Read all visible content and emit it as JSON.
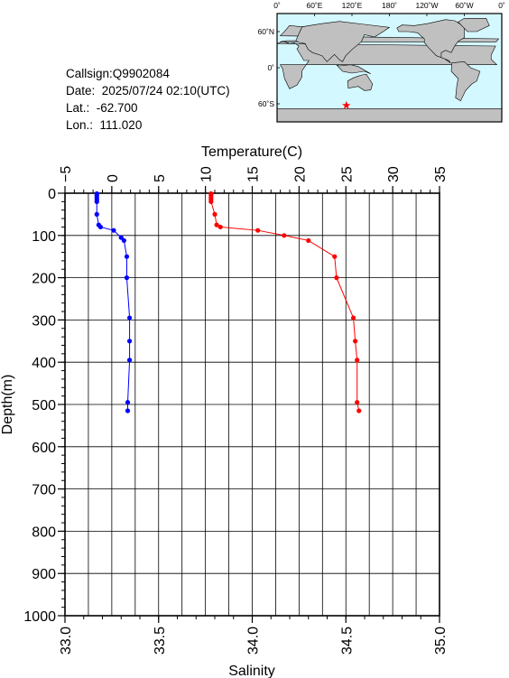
{
  "info": {
    "callsign": "Callsign:Q9902084",
    "date": "Date:  2025/07/24 02:10(UTC)",
    "lat": "Lat.:  -62.700",
    "lon": "Lon.:  111.020"
  },
  "map": {
    "top_labels": [
      "0˚",
      "60˚E",
      "120˚E",
      "180˚",
      "120˚W",
      "60˚W",
      "0˚"
    ],
    "side_labels": [
      "60˚N",
      "0˚",
      "60˚S"
    ],
    "ocean_color": "#d4f8ff",
    "land_color": "#c0c0c0",
    "marker_color": "#ff0000",
    "marker_lon": 111.02,
    "marker_lat": -62.7
  },
  "chart_data": {
    "type": "line",
    "xlabel_top": "Temperature(C)",
    "xlabel_bottom": "Salinity",
    "ylabel": "Depth(m)",
    "temperature_ticks": [
      "−5",
      "0",
      "5",
      "10",
      "15",
      "20",
      "25",
      "30",
      "35"
    ],
    "salinity_ticks": [
      "33.0",
      "33.5",
      "34.0",
      "34.5",
      "35.0"
    ],
    "depth_ticks": [
      "0",
      "100",
      "200",
      "300",
      "400",
      "500",
      "600",
      "700",
      "800",
      "900",
      "1000"
    ],
    "temperature_range": [
      -5,
      35
    ],
    "salinity_range": [
      33.0,
      35.0
    ],
    "depth_range": [
      0,
      1000
    ],
    "grid": true,
    "series": [
      {
        "axis": "temperature",
        "color": "#0000ff",
        "points": [
          [
            -1.6,
            1
          ],
          [
            -1.6,
            5
          ],
          [
            -1.6,
            10
          ],
          [
            -1.6,
            15
          ],
          [
            -1.6,
            20
          ],
          [
            -1.6,
            50
          ],
          [
            -1.4,
            75
          ],
          [
            -1.2,
            80
          ],
          [
            0.2,
            88
          ],
          [
            1.0,
            105
          ],
          [
            1.3,
            112
          ],
          [
            1.6,
            150
          ],
          [
            1.6,
            200
          ],
          [
            1.9,
            295
          ],
          [
            1.9,
            350
          ],
          [
            1.9,
            395
          ],
          [
            1.7,
            495
          ],
          [
            1.7,
            515
          ]
        ]
      },
      {
        "axis": "salinity",
        "color": "#ff0000",
        "points": [
          [
            33.78,
            1
          ],
          [
            33.78,
            5
          ],
          [
            33.78,
            10
          ],
          [
            33.78,
            15
          ],
          [
            33.78,
            20
          ],
          [
            33.8,
            50
          ],
          [
            33.81,
            75
          ],
          [
            33.83,
            80
          ],
          [
            34.03,
            88
          ],
          [
            34.17,
            100
          ],
          [
            34.3,
            112
          ],
          [
            34.44,
            150
          ],
          [
            34.45,
            200
          ],
          [
            34.54,
            295
          ],
          [
            34.55,
            350
          ],
          [
            34.56,
            395
          ],
          [
            34.56,
            495
          ],
          [
            34.57,
            515
          ]
        ]
      }
    ]
  }
}
